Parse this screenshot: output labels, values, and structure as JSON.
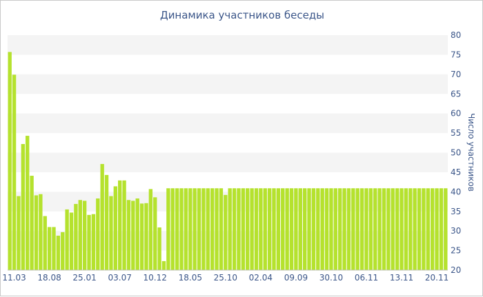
{
  "chart_data": {
    "type": "bar",
    "title": "Динамика участников беседы",
    "ylabel": "Число участников",
    "xlabel": "",
    "ylim": [
      20,
      80
    ],
    "y_ticks": [
      20,
      25,
      30,
      35,
      40,
      45,
      50,
      55,
      60,
      65,
      70,
      75,
      80
    ],
    "x_tick_labels": [
      "11.03",
      "18.08",
      "25.01",
      "03.07",
      "10.12",
      "18.05",
      "25.10",
      "02.04",
      "09.09",
      "30.10",
      "06.11",
      "13.11",
      "20.11"
    ],
    "x_tick_indices": [
      1,
      9,
      17,
      25,
      33,
      41,
      49,
      57,
      65,
      73,
      81,
      89,
      97
    ],
    "y_axis_position": "right",
    "grid": "horizontal alternating bands",
    "bar_color": "#b5e22e",
    "values": [
      75.7,
      69.9,
      38.9,
      52.2,
      54.3,
      44.1,
      39.1,
      39.4,
      33.8,
      31.0,
      31.0,
      28.8,
      29.7,
      35.5,
      34.7,
      36.9,
      37.9,
      37.7,
      34.1,
      34.3,
      38.3,
      47.1,
      44.3,
      38.9,
      41.4,
      42.9,
      42.9,
      37.9,
      37.7,
      38.3,
      37.0,
      37.1,
      40.7,
      38.6,
      30.9,
      22.3,
      40.9,
      40.9,
      40.9,
      40.9,
      40.9,
      40.9,
      40.9,
      40.9,
      40.9,
      40.9,
      40.9,
      40.9,
      40.9,
      39.2,
      40.9,
      40.9,
      40.9,
      40.9,
      40.9,
      40.9,
      40.9,
      40.9,
      40.9,
      40.9,
      40.9,
      40.9,
      40.9,
      40.9,
      40.9,
      40.9,
      40.9,
      40.9,
      40.9,
      40.9,
      40.9,
      40.9,
      40.9,
      40.9,
      40.9,
      40.9,
      40.9,
      40.9,
      40.9,
      40.9,
      40.9,
      40.9,
      40.9,
      40.9,
      40.9,
      40.9,
      40.9,
      40.9,
      40.9,
      40.9,
      40.9,
      40.9,
      40.9,
      40.9,
      40.9,
      40.9,
      40.9,
      40.9,
      40.9,
      40.9
    ]
  }
}
